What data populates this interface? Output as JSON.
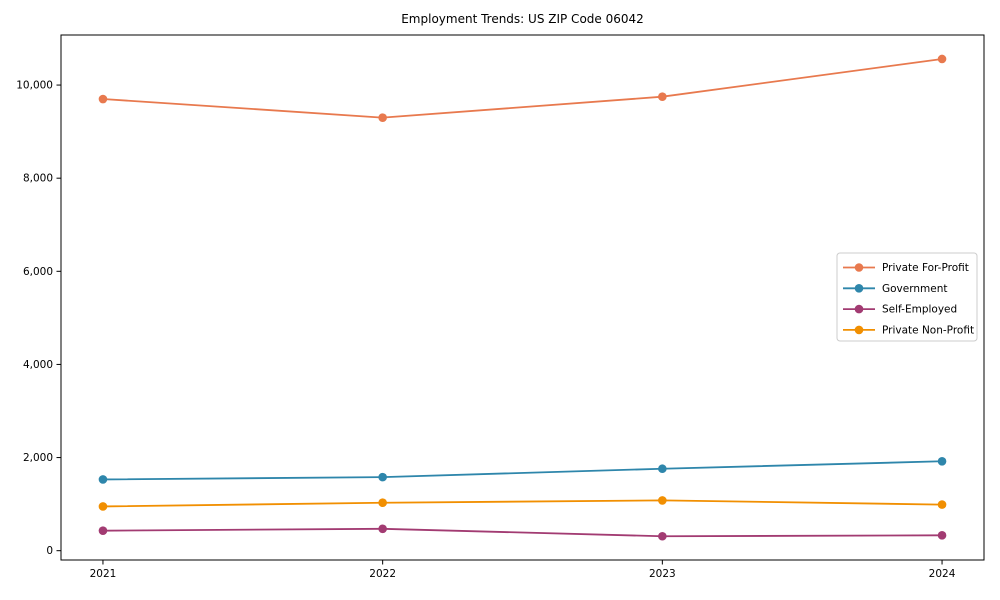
{
  "chart_data": {
    "type": "line",
    "title": "Employment Trends: US ZIP Code 06042",
    "xlabel": "",
    "ylabel": "",
    "x": [
      2021,
      2022,
      2023,
      2024
    ],
    "x_tick_labels": [
      "2021",
      "2022",
      "2023",
      "2024"
    ],
    "y_ticks": [
      0,
      2000,
      4000,
      6000,
      8000,
      10000
    ],
    "y_tick_labels": [
      "0",
      "2,000",
      "4,000",
      "6,000",
      "8,000",
      "10,000"
    ],
    "xlim": [
      2020.85,
      2024.15
    ],
    "ylim": [
      -200,
      11075
    ],
    "grid": false,
    "legend_position": "center-right",
    "series": [
      {
        "name": "Private For-Profit",
        "color": "#e8794e",
        "values": [
          9700,
          9300,
          9750,
          10560
        ]
      },
      {
        "name": "Government",
        "color": "#2e86ab",
        "values": [
          1530,
          1580,
          1760,
          1920
        ]
      },
      {
        "name": "Self-Employed",
        "color": "#a23b72",
        "values": [
          430,
          470,
          310,
          330
        ]
      },
      {
        "name": "Private Non-Profit",
        "color": "#f18f01",
        "values": [
          950,
          1030,
          1080,
          990
        ]
      }
    ]
  }
}
